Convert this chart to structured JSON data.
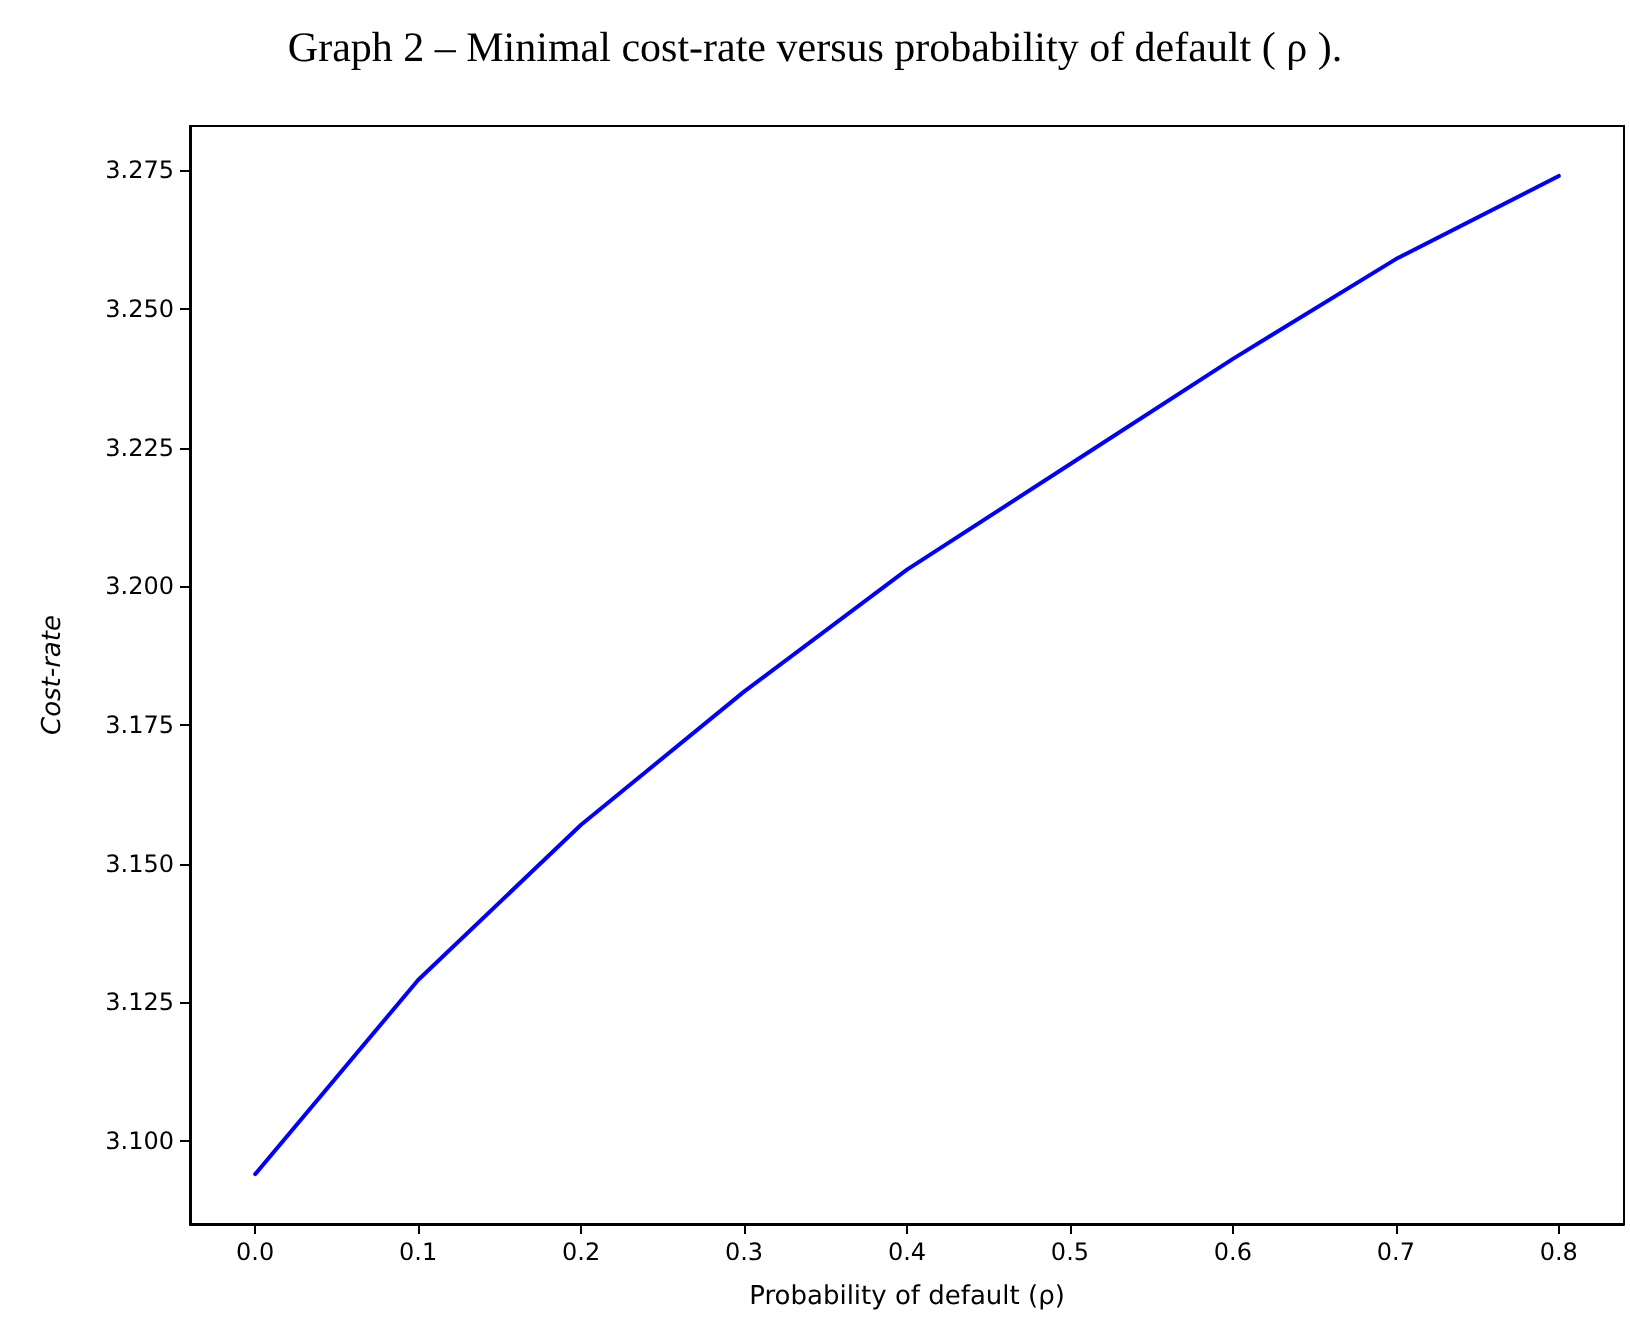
{
  "chart_data": {
    "type": "line",
    "title": "Graph 2 – Minimal cost-rate versus probability of default ( ρ ).",
    "xlabel": "Probability of default (ρ)",
    "ylabel": "Cost-rate",
    "x": [
      0.0,
      0.1,
      0.2,
      0.3,
      0.4,
      0.5,
      0.6,
      0.7,
      0.8
    ],
    "series": [
      {
        "color": "#0000ff",
        "values": [
          3.094,
          3.129,
          3.157,
          3.181,
          3.203,
          3.222,
          3.241,
          3.259,
          3.274
        ]
      }
    ],
    "xlim": [
      -0.04,
      0.84
    ],
    "xticks": [
      {
        "value": 0,
        "label": "0.0"
      },
      0.1,
      0.2,
      0.3,
      0.4,
      0.5,
      0.6,
      0.7,
      0.8
    ],
    "ylim": [
      3.085,
      3.283
    ],
    "yticks": [
      {
        "value": 3.1,
        "label": "3.100"
      },
      {
        "value": 3.125,
        "label": "3.125"
      },
      {
        "value": 3.15,
        "label": "3.150"
      },
      {
        "value": 3.175,
        "label": "3.175"
      },
      {
        "value": 3.2,
        "label": "3.200"
      },
      {
        "value": 3.225,
        "label": "3.225"
      },
      {
        "value": 3.25,
        "label": "3.250"
      },
      {
        "value": 3.275,
        "label": "3.275"
      }
    ],
    "grid": false,
    "marker": "none",
    "line_style": "solid"
  }
}
